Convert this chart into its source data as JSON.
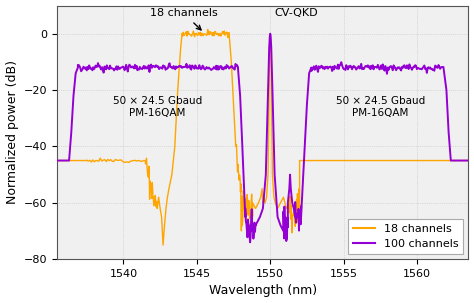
{
  "xlim": [
    1535.5,
    1563.5
  ],
  "ylim": [
    -80,
    10
  ],
  "xlabel": "Wavelength (nm)",
  "ylabel": "Normalized power (dB)",
  "grid_color": "#c0c0c0",
  "bg_color": "#f0f0f0",
  "orange_color": "#FFA500",
  "purple_color": "#9400D3",
  "annotation_18ch": "18 channels",
  "annotation_cvqkd": "CV-QKD",
  "text_left": "50 × 24.5 Gbaud\nPM-16QAM",
  "text_right": "50 × 24.5 Gbaud\nPM-16QAM",
  "legend_labels": [
    "18 channels",
    "100 channels"
  ],
  "xticks": [
    1540,
    1545,
    1550,
    1555,
    1560
  ],
  "yticks": [
    -80,
    -60,
    -40,
    -20,
    0
  ]
}
